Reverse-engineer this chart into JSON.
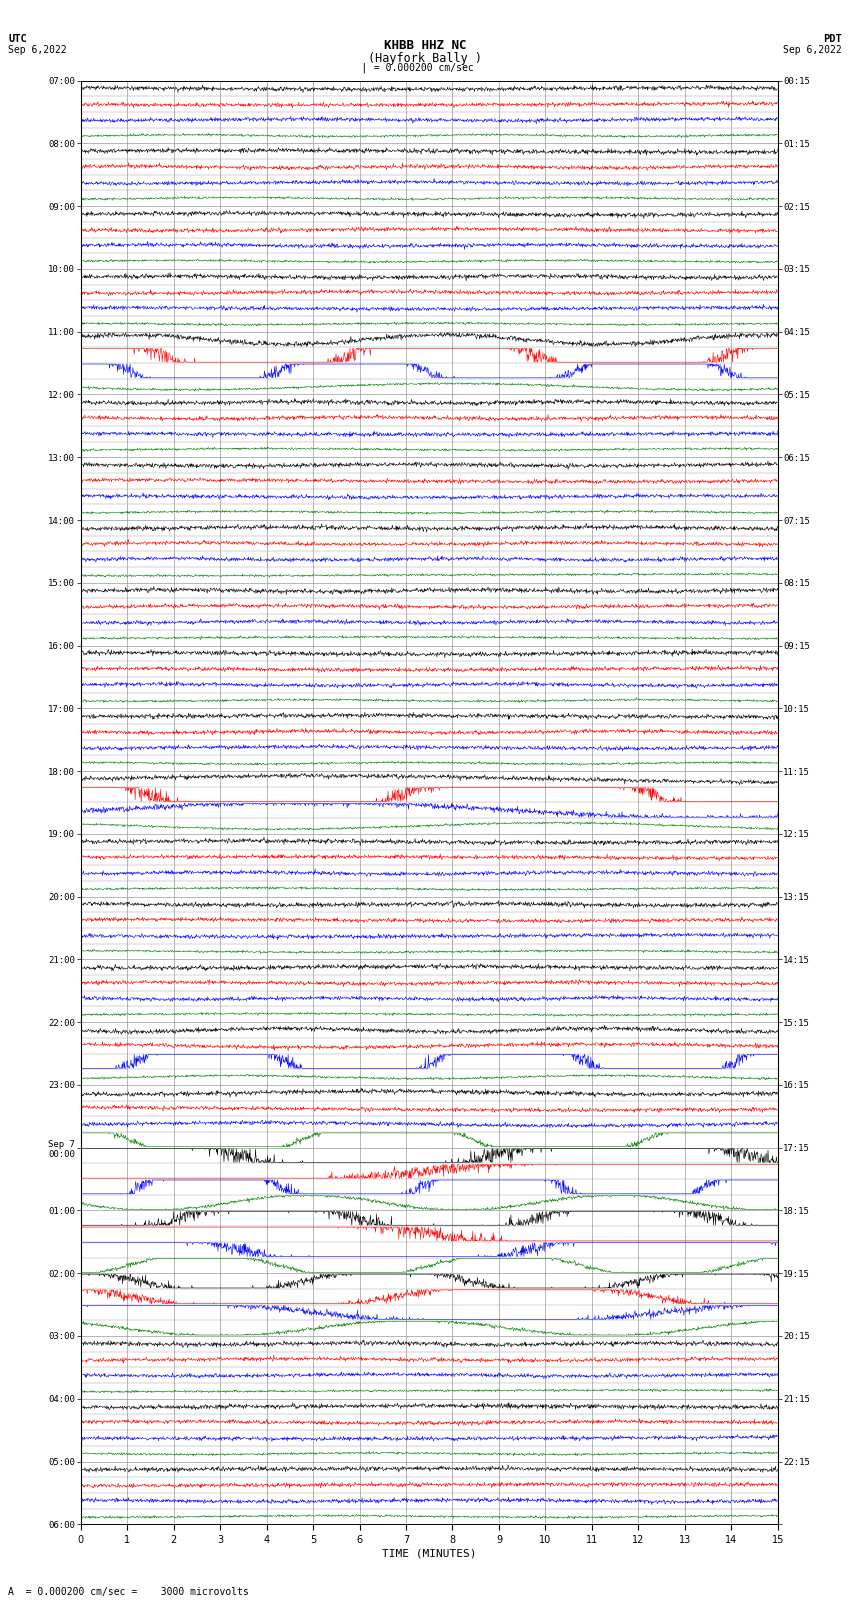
{
  "title_line1": "KHBB HHZ NC",
  "title_line2": "(Hayfork Bally )",
  "scale_label": "= 0.000200 cm/sec",
  "bottom_label": "A  = 0.000200 cm/sec =    3000 microvolts",
  "xlabel": "TIME (MINUTES)",
  "utc_times": [
    "07:00",
    "08:00",
    "09:00",
    "10:00",
    "11:00",
    "12:00",
    "13:00",
    "14:00",
    "15:00",
    "16:00",
    "17:00",
    "18:00",
    "19:00",
    "20:00",
    "21:00",
    "22:00",
    "23:00",
    "Sep 7\n00:00",
    "01:00",
    "02:00",
    "03:00",
    "04:00",
    "05:00",
    "06:00"
  ],
  "pdt_times": [
    "00:15",
    "01:15",
    "02:15",
    "03:15",
    "04:15",
    "05:15",
    "06:15",
    "07:15",
    "08:15",
    "09:15",
    "10:15",
    "11:15",
    "12:15",
    "13:15",
    "14:15",
    "15:15",
    "16:15",
    "17:15",
    "18:15",
    "19:15",
    "20:15",
    "21:15",
    "22:15",
    "23:15"
  ],
  "n_hours": 23,
  "traces_per_hour": 4,
  "colors": [
    "black",
    "red",
    "blue",
    "green"
  ],
  "bg_color": "white",
  "grid_color": "#999999",
  "fig_width": 8.5,
  "fig_height": 16.13,
  "dpi": 100,
  "xmin": 0,
  "xmax": 15,
  "noise_amplitude": [
    0.25,
    0.22,
    0.22,
    0.12
  ],
  "random_seed": 42
}
